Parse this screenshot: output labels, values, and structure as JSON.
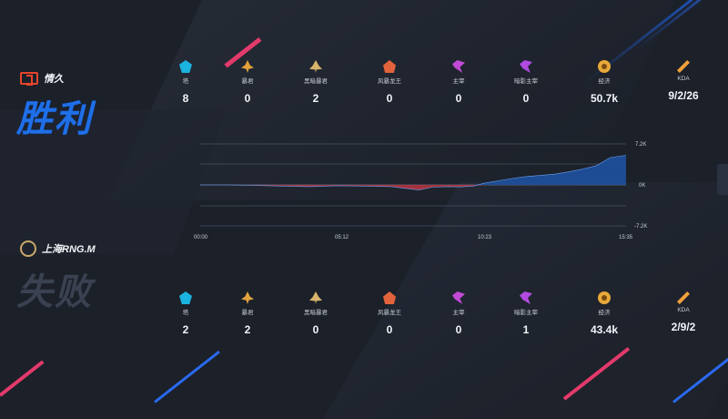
{
  "colors": {
    "win": "#1f6fe8",
    "lose": "#3a4150",
    "positive_area": "#1f4f9a",
    "negative_area": "#b3333f"
  },
  "teams": [
    {
      "name": "情久",
      "result": "胜利",
      "logo": "dragon-logo-icon",
      "stats": [
        {
          "icon": "tower-icon",
          "label": "塔",
          "value": "8"
        },
        {
          "icon": "baron-icon",
          "label": "暴君",
          "value": "0"
        },
        {
          "icon": "dark-baron-icon",
          "label": "黑暗暴君",
          "value": "2"
        },
        {
          "icon": "storm-dragon-icon",
          "label": "风暴龙王",
          "value": "0"
        },
        {
          "icon": "lord-icon",
          "label": "主宰",
          "value": "0"
        },
        {
          "icon": "shadow-lord-icon",
          "label": "暗影主宰",
          "value": "0"
        },
        {
          "icon": "gold-icon",
          "label": "经济",
          "value": "50.7k"
        },
        {
          "icon": "kda-icon",
          "label": "KDA",
          "value": "9/2/26"
        }
      ]
    },
    {
      "name": "上海RNG.M",
      "result": "失败",
      "logo": "rng-logo-icon",
      "stats": [
        {
          "icon": "tower-icon",
          "label": "塔",
          "value": "2"
        },
        {
          "icon": "baron-icon",
          "label": "暴君",
          "value": "2"
        },
        {
          "icon": "dark-baron-icon",
          "label": "黑暗暴君",
          "value": "0"
        },
        {
          "icon": "storm-dragon-icon",
          "label": "风暴龙王",
          "value": "0"
        },
        {
          "icon": "lord-icon",
          "label": "主宰",
          "value": "0"
        },
        {
          "icon": "shadow-lord-icon",
          "label": "暗影主宰",
          "value": "1"
        },
        {
          "icon": "gold-icon",
          "label": "经济",
          "value": "43.4k"
        },
        {
          "icon": "kda-icon",
          "label": "KDA",
          "value": "2/9/2"
        }
      ]
    }
  ],
  "chart_data": {
    "type": "area",
    "title": "",
    "xlabel": "",
    "ylabel": "",
    "x_ticks": [
      "00:00",
      "05:12",
      "10:23",
      "15:35"
    ],
    "y_ticks": [
      "7.2K",
      "0K",
      "-7.2K"
    ],
    "x_range_minutes": [
      0,
      15.58
    ],
    "ylim": [
      -7200,
      7200
    ],
    "grid": true,
    "series": [
      {
        "x_minutes": [
          0,
          1,
          2,
          3,
          4,
          5,
          6,
          7,
          7.5,
          8,
          8.5,
          9,
          9.5,
          10,
          10.4,
          11,
          11.5,
          12,
          12.5,
          13,
          13.5,
          14,
          14.5,
          15,
          15.58
        ],
        "values": [
          0,
          0,
          -100,
          -200,
          -300,
          -150,
          -200,
          -300,
          -600,
          -900,
          -400,
          -300,
          -350,
          -200,
          300,
          800,
          1200,
          1500,
          1700,
          1900,
          2300,
          2800,
          3400,
          4800,
          5200
        ]
      }
    ]
  }
}
